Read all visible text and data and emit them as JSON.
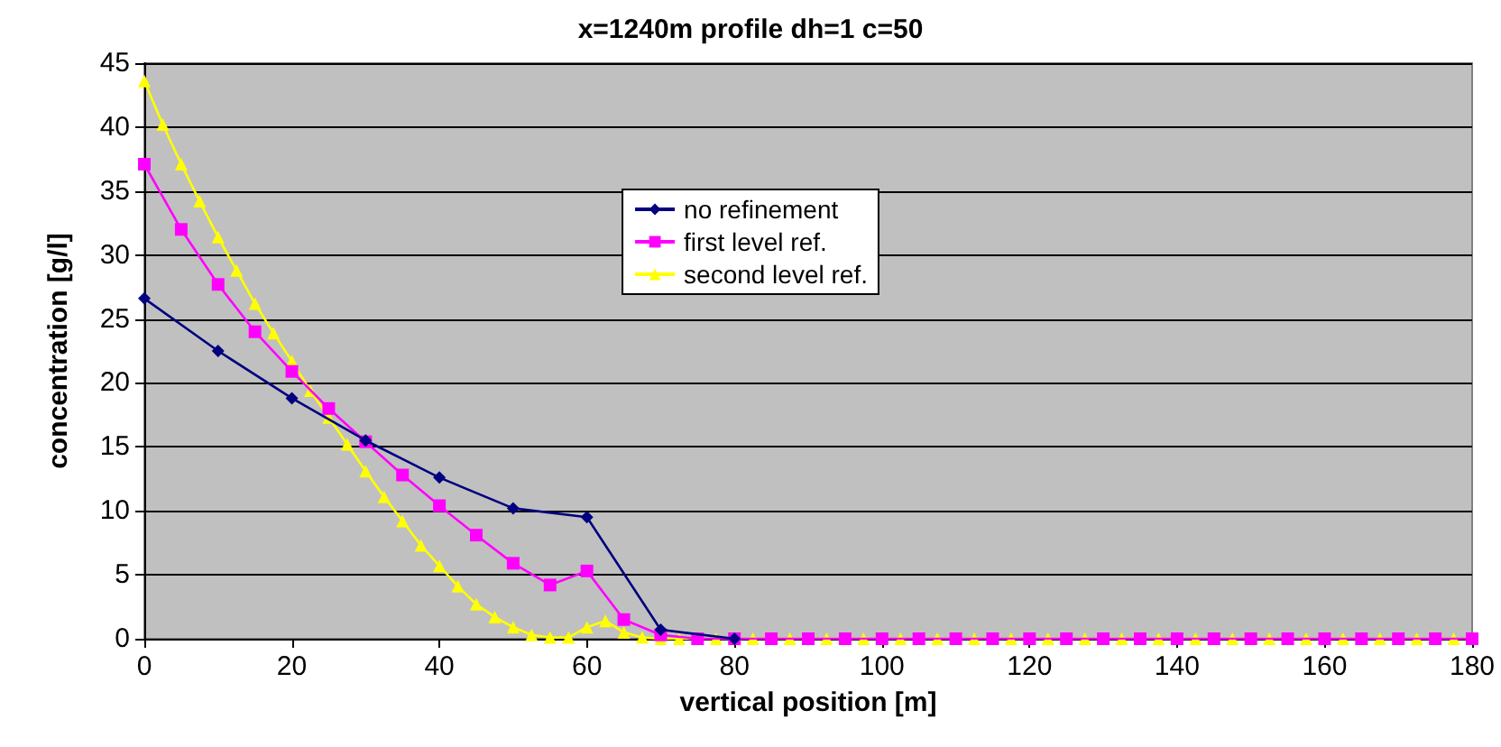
{
  "chart_data": {
    "type": "line",
    "title": "x=1240m profile dh=1 c=50",
    "xlabel": "vertical position [m]",
    "ylabel": "concentration [g/l]",
    "xlim": [
      0,
      180
    ],
    "xticks": [
      0,
      20,
      40,
      60,
      80,
      100,
      120,
      140,
      160,
      180
    ],
    "ylim": [
      0,
      45
    ],
    "yticks": [
      0,
      5,
      10,
      15,
      20,
      25,
      30,
      35,
      40,
      45
    ],
    "grid": "y",
    "legend": "top",
    "line_style": "solid",
    "series": [
      {
        "name": "no refinement",
        "color": "#000080",
        "marker": "diamond",
        "x": [
          0,
          10,
          20,
          30,
          40,
          50,
          60,
          70,
          80
        ],
        "values": [
          26.6,
          22.5,
          18.8,
          15.5,
          12.6,
          10.2,
          9.5,
          0.7,
          0
        ]
      },
      {
        "name": "first level ref.",
        "color": "#ff00ff",
        "marker": "square",
        "x": [
          0,
          5,
          10,
          15,
          20,
          25,
          30,
          35,
          40,
          45,
          50,
          55,
          60,
          65,
          70,
          75,
          80,
          85,
          90,
          95,
          100,
          105,
          110,
          115,
          120,
          125,
          130,
          135,
          140,
          145,
          150,
          155,
          160,
          165,
          170,
          175,
          180
        ],
        "values": [
          37.1,
          32.0,
          27.7,
          24.0,
          20.9,
          18.0,
          15.4,
          12.8,
          10.4,
          8.1,
          5.9,
          4.2,
          5.3,
          1.5,
          0.3,
          0,
          0,
          0,
          0,
          0,
          0,
          0,
          0,
          0,
          0,
          0,
          0,
          0,
          0,
          0,
          0,
          0,
          0,
          0,
          0,
          0,
          0
        ]
      },
      {
        "name": "second level ref.",
        "color": "#ffff00",
        "marker": "triangle",
        "x": [
          0,
          2.5,
          5,
          7.5,
          10,
          12.5,
          15,
          17.5,
          20,
          22.5,
          25,
          27.5,
          30,
          32.5,
          35,
          37.5,
          40,
          42.5,
          45,
          47.5,
          50,
          52.5,
          55,
          57.5,
          60,
          62.5,
          65,
          67.5,
          70,
          72.5,
          75,
          77.5,
          80,
          82.5,
          85,
          87.5,
          90,
          92.5,
          95,
          97.5,
          100,
          102.5,
          105,
          107.5,
          110,
          112.5,
          115,
          117.5,
          120,
          122.5,
          125,
          127.5,
          130,
          132.5,
          135,
          137.5,
          140,
          142.5,
          145,
          147.5,
          150,
          152.5,
          155,
          157.5,
          160,
          162.5,
          165,
          167.5,
          170,
          172.5,
          175,
          177.5,
          180
        ],
        "values": [
          43.6,
          40.2,
          37.1,
          34.2,
          31.4,
          28.8,
          26.2,
          23.9,
          21.7,
          19.4,
          17.3,
          15.2,
          13.1,
          11.1,
          9.2,
          7.3,
          5.7,
          4.1,
          2.7,
          1.7,
          0.9,
          0.3,
          0.1,
          0.1,
          0.9,
          1.4,
          0.5,
          0.1,
          0,
          0,
          0,
          0,
          0,
          0,
          0,
          0,
          0,
          0,
          0,
          0,
          0,
          0,
          0,
          0,
          0,
          0,
          0,
          0,
          0,
          0,
          0,
          0,
          0,
          0,
          0,
          0,
          0,
          0,
          0,
          0,
          0,
          0,
          0,
          0,
          0,
          0,
          0,
          0,
          0,
          0,
          0,
          0,
          0
        ]
      }
    ]
  }
}
